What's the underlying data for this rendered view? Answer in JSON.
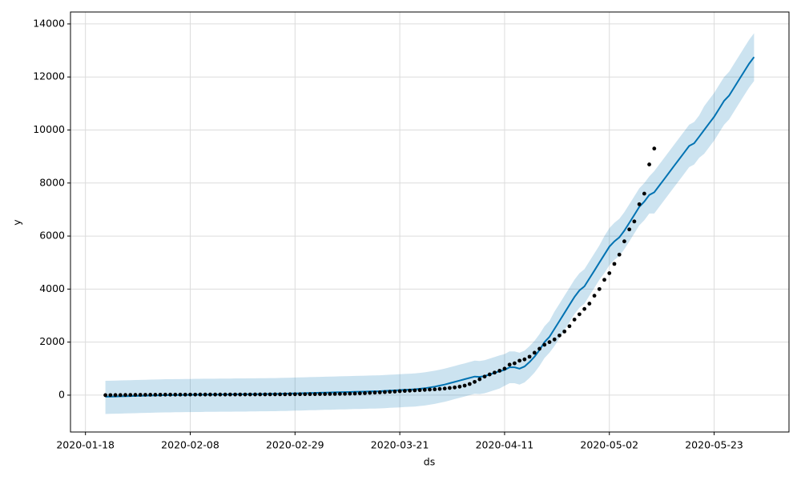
{
  "chart_data": {
    "type": "forecast",
    "x_label": "ds",
    "y_label": "y",
    "xlim": [
      "2020-01-15",
      "2020-06-07"
    ],
    "ylim": [
      -1390,
      14450
    ],
    "xticks": [
      "2020-01-18",
      "2020-02-08",
      "2020-02-29",
      "2020-03-21",
      "2020-04-11",
      "2020-05-02",
      "2020-05-23"
    ],
    "yticks": [
      0,
      2000,
      4000,
      6000,
      8000,
      10000,
      12000,
      14000
    ],
    "grid": true,
    "x": [
      "2020-01-22",
      "2020-01-23",
      "2020-01-24",
      "2020-01-25",
      "2020-01-26",
      "2020-01-27",
      "2020-01-28",
      "2020-01-29",
      "2020-01-30",
      "2020-01-31",
      "2020-02-01",
      "2020-02-02",
      "2020-02-03",
      "2020-02-04",
      "2020-02-05",
      "2020-02-06",
      "2020-02-07",
      "2020-02-08",
      "2020-02-09",
      "2020-02-10",
      "2020-02-11",
      "2020-02-12",
      "2020-02-13",
      "2020-02-14",
      "2020-02-15",
      "2020-02-16",
      "2020-02-17",
      "2020-02-18",
      "2020-02-19",
      "2020-02-20",
      "2020-02-21",
      "2020-02-22",
      "2020-02-23",
      "2020-02-24",
      "2020-02-25",
      "2020-02-26",
      "2020-02-27",
      "2020-02-28",
      "2020-02-29",
      "2020-03-01",
      "2020-03-02",
      "2020-03-03",
      "2020-03-04",
      "2020-03-05",
      "2020-03-06",
      "2020-03-07",
      "2020-03-08",
      "2020-03-09",
      "2020-03-10",
      "2020-03-11",
      "2020-03-12",
      "2020-03-13",
      "2020-03-14",
      "2020-03-15",
      "2020-03-16",
      "2020-03-17",
      "2020-03-18",
      "2020-03-19",
      "2020-03-20",
      "2020-03-21",
      "2020-03-22",
      "2020-03-23",
      "2020-03-24",
      "2020-03-25",
      "2020-03-26",
      "2020-03-27",
      "2020-03-28",
      "2020-03-29",
      "2020-03-30",
      "2020-03-31",
      "2020-04-01",
      "2020-04-02",
      "2020-04-03",
      "2020-04-04",
      "2020-04-05",
      "2020-04-06",
      "2020-04-07",
      "2020-04-08",
      "2020-04-09",
      "2020-04-10",
      "2020-04-11",
      "2020-04-12",
      "2020-04-13",
      "2020-04-14",
      "2020-04-15",
      "2020-04-16",
      "2020-04-17",
      "2020-04-18",
      "2020-04-19",
      "2020-04-20",
      "2020-04-21",
      "2020-04-22",
      "2020-04-23",
      "2020-04-24",
      "2020-04-25",
      "2020-04-26",
      "2020-04-27",
      "2020-04-28",
      "2020-04-29",
      "2020-04-30",
      "2020-05-01",
      "2020-05-02",
      "2020-05-03",
      "2020-05-04",
      "2020-05-05",
      "2020-05-06",
      "2020-05-07",
      "2020-05-08",
      "2020-05-09",
      "2020-05-10",
      "2020-05-11",
      "2020-05-12",
      "2020-05-13",
      "2020-05-14",
      "2020-05-15",
      "2020-05-16",
      "2020-05-17",
      "2020-05-18",
      "2020-05-19",
      "2020-05-20",
      "2020-05-21",
      "2020-05-22",
      "2020-05-23",
      "2020-05-24",
      "2020-05-25",
      "2020-05-26",
      "2020-05-27",
      "2020-05-28",
      "2020-05-29",
      "2020-05-30",
      "2020-05-31"
    ],
    "band": {
      "color": "#0072B2",
      "opacity": 0.2,
      "upper": [
        540,
        545,
        550,
        555,
        560,
        565,
        570,
        575,
        580,
        585,
        590,
        595,
        600,
        600,
        605,
        605,
        610,
        610,
        615,
        615,
        620,
        620,
        620,
        625,
        625,
        625,
        630,
        630,
        630,
        635,
        635,
        640,
        640,
        645,
        645,
        650,
        655,
        660,
        665,
        670,
        675,
        680,
        685,
        690,
        695,
        700,
        705,
        710,
        715,
        720,
        725,
        730,
        735,
        740,
        745,
        750,
        760,
        770,
        780,
        790,
        800,
        810,
        820,
        840,
        860,
        890,
        920,
        960,
        1000,
        1050,
        1100,
        1150,
        1200,
        1250,
        1300,
        1290,
        1320,
        1380,
        1440,
        1500,
        1550,
        1650,
        1650,
        1600,
        1680,
        1850,
        2050,
        2300,
        2600,
        2800,
        3150,
        3450,
        3750,
        4050,
        4350,
        4600,
        4750,
        5050,
        5350,
        5650,
        6000,
        6300,
        6500,
        6650,
        6900,
        7200,
        7500,
        7800,
        8000,
        8250,
        8450,
        8700,
        8950,
        9200,
        9450,
        9700,
        9950,
        10200,
        10300,
        10550,
        10900,
        11150,
        11400,
        11700,
        12000,
        12200,
        12500,
        12800,
        13100,
        13400,
        13650
      ],
      "lower": [
        -710,
        -705,
        -700,
        -695,
        -690,
        -685,
        -680,
        -675,
        -670,
        -665,
        -660,
        -655,
        -650,
        -650,
        -645,
        -645,
        -640,
        -640,
        -635,
        -635,
        -630,
        -630,
        -630,
        -625,
        -625,
        -625,
        -620,
        -620,
        -620,
        -615,
        -615,
        -610,
        -610,
        -605,
        -605,
        -600,
        -595,
        -590,
        -585,
        -580,
        -575,
        -570,
        -565,
        -560,
        -555,
        -550,
        -545,
        -540,
        -535,
        -530,
        -525,
        -520,
        -515,
        -510,
        -505,
        -500,
        -490,
        -480,
        -470,
        -460,
        -450,
        -440,
        -430,
        -410,
        -390,
        -360,
        -330,
        -290,
        -250,
        -200,
        -150,
        -100,
        -50,
        0,
        50,
        40,
        70,
        130,
        190,
        250,
        350,
        450,
        450,
        400,
        480,
        650,
        850,
        1100,
        1400,
        1600,
        1850,
        2150,
        2450,
        2750,
        3050,
        3300,
        3450,
        3750,
        4050,
        4350,
        4600,
        4900,
        5100,
        5250,
        5500,
        5800,
        6100,
        6400,
        6600,
        6850,
        6850,
        7100,
        7350,
        7600,
        7850,
        8100,
        8350,
        8600,
        8700,
        8950,
        9100,
        9350,
        9600,
        9900,
        10200,
        10400,
        10700,
        11000,
        11300,
        11600,
        11850
      ]
    },
    "series": [
      {
        "style": "line",
        "color": "#0072B2",
        "values": [
          -60,
          -55,
          -50,
          -45,
          -40,
          -35,
          -30,
          -25,
          -20,
          -15,
          -10,
          -5,
          0,
          0,
          5,
          5,
          10,
          10,
          15,
          15,
          20,
          20,
          20,
          25,
          25,
          25,
          30,
          30,
          30,
          35,
          35,
          40,
          40,
          45,
          45,
          50,
          55,
          60,
          65,
          70,
          75,
          80,
          85,
          90,
          95,
          100,
          105,
          110,
          115,
          120,
          125,
          130,
          135,
          140,
          145,
          150,
          160,
          170,
          180,
          190,
          200,
          210,
          220,
          240,
          260,
          290,
          320,
          360,
          400,
          450,
          500,
          550,
          600,
          650,
          700,
          690,
          720,
          780,
          840,
          900,
          950,
          1050,
          1050,
          1000,
          1080,
          1250,
          1450,
          1700,
          2000,
          2200,
          2500,
          2800,
          3100,
          3400,
          3700,
          3950,
          4100,
          4400,
          4700,
          5000,
          5300,
          5600,
          5800,
          5950,
          6200,
          6500,
          6800,
          7100,
          7300,
          7550,
          7650,
          7900,
          8150,
          8400,
          8650,
          8900,
          9150,
          9400,
          9500,
          9750,
          10000,
          10250,
          10500,
          10800,
          11100,
          11300,
          11600,
          11900,
          12200,
          12500,
          12750
        ]
      },
      {
        "style": "dots",
        "color": "#000000",
        "values": [
          0,
          2,
          3,
          5,
          8,
          10,
          12,
          13,
          14,
          15,
          16,
          17,
          18,
          19,
          19,
          20,
          20,
          21,
          21,
          22,
          22,
          22,
          23,
          23,
          23,
          24,
          24,
          24,
          25,
          25,
          26,
          27,
          28,
          29,
          30,
          31,
          32,
          33,
          34,
          35,
          36,
          37,
          38,
          40,
          42,
          44,
          46,
          48,
          50,
          55,
          60,
          68,
          75,
          85,
          95,
          105,
          115,
          125,
          135,
          150,
          160,
          170,
          180,
          190,
          200,
          210,
          220,
          235,
          250,
          270,
          290,
          320,
          360,
          420,
          500,
          600,
          700,
          780,
          850,
          920,
          1000,
          1150,
          1200,
          1300,
          1350,
          1450,
          1600,
          1750,
          1900,
          2000,
          2100,
          2250,
          2400,
          2600,
          2850,
          3050,
          3250,
          3450,
          3750,
          4000,
          4350,
          4600,
          4950,
          5300,
          5800,
          6250,
          6550,
          7200,
          7600,
          8700,
          9300,
          null,
          null,
          null,
          null,
          null,
          null,
          null,
          null,
          null,
          null,
          null,
          null,
          null,
          null,
          null,
          null,
          null,
          null,
          null,
          null
        ]
      }
    ]
  }
}
